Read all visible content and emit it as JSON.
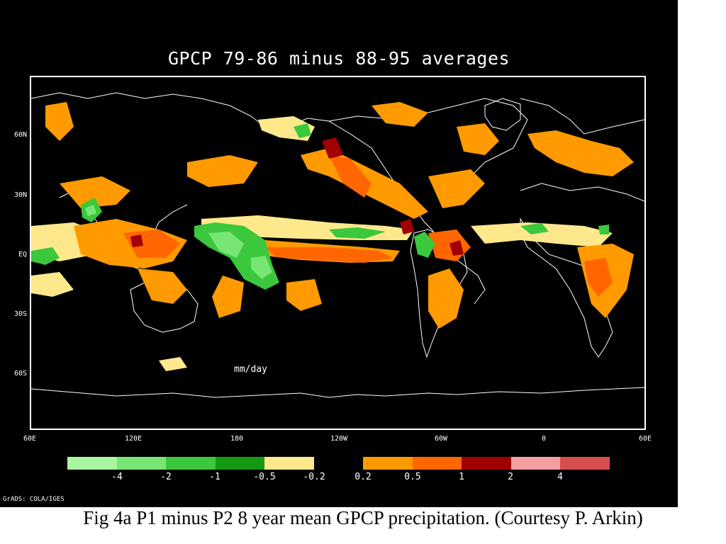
{
  "title": "GPCP 79-86 minus 88-95 averages",
  "units_label": "mm/day",
  "lat_ticks": [
    "60N",
    "30N",
    "EQ",
    "30S",
    "60S"
  ],
  "lon_ticks": [
    "60E",
    "120E",
    "180",
    "120W",
    "60W",
    "0",
    "60E"
  ],
  "colorbar_left": {
    "colors": [
      "#aaf5a0",
      "#78e674",
      "#3cc83c",
      "#129b12",
      "#fde88c"
    ],
    "labels": [
      "-4",
      "-2",
      "-1",
      "-0.5",
      "-0.2"
    ]
  },
  "colorbar_right": {
    "colors": [
      "#ff9a00",
      "#ff6600",
      "#a00000",
      "#f5a0a0",
      "#d84e4e"
    ],
    "labels": [
      "0.2",
      "0.5",
      "1",
      "2",
      "4"
    ]
  },
  "credit": "GrADS: COLA/IGES",
  "caption": "Fig 4a P1 minus P2 8 year mean GPCP precipitation.  (Courtesy P. Arkin)",
  "map_colors": {
    "land_outline": "#ffffff",
    "pale": "#fde88c",
    "orange": "#ff9a00",
    "dark_orange": "#ff6600",
    "dark_red": "#a00000",
    "light_green": "#78e674",
    "green": "#3cc83c"
  }
}
